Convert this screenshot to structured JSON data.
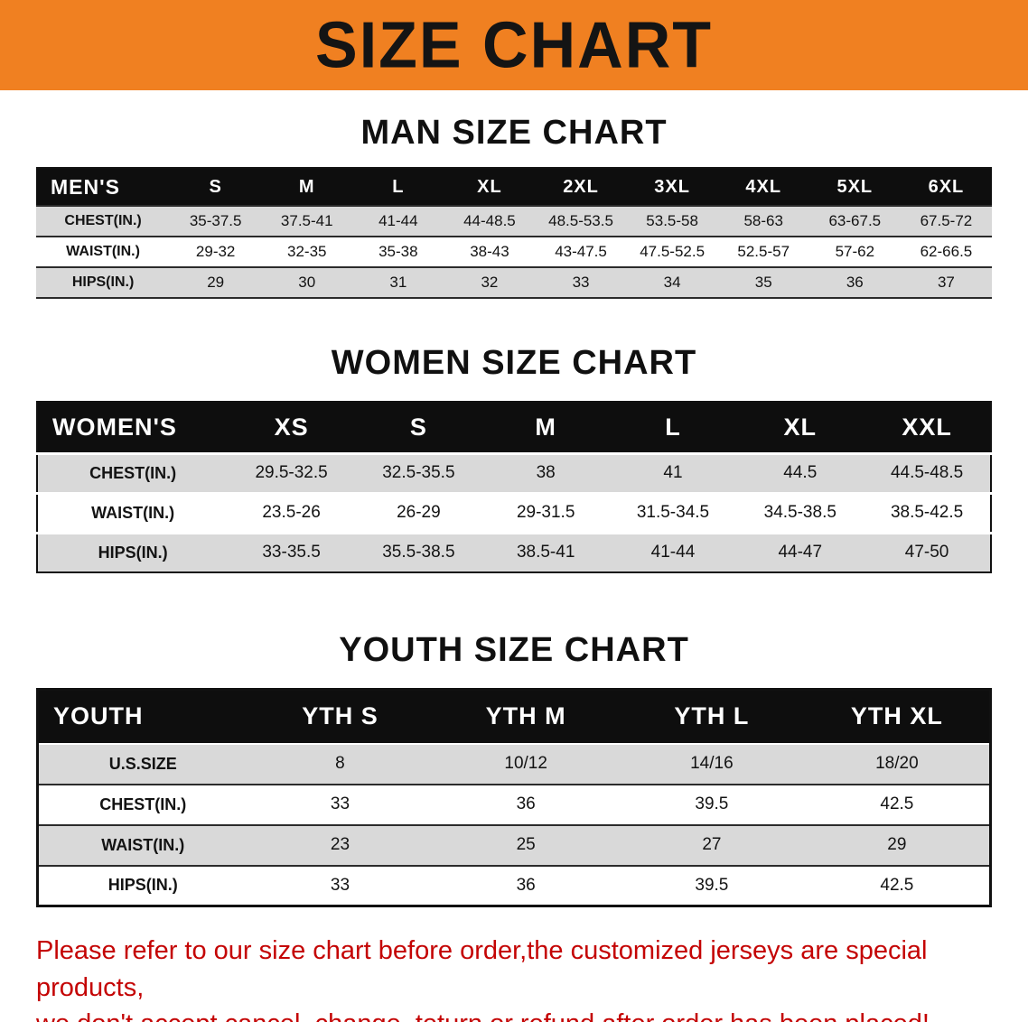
{
  "banner": {
    "title": "SIZE CHART",
    "bg_color": "#f08021",
    "text_color": "#141414"
  },
  "sections": [
    {
      "id": "men",
      "heading": "MAN SIZE CHART",
      "table": {
        "label_header": "MEN'S",
        "columns": [
          "S",
          "M",
          "L",
          "XL",
          "2XL",
          "3XL",
          "4XL",
          "5XL",
          "6XL"
        ],
        "rows": [
          {
            "label": "CHEST(IN.)",
            "values": [
              "35-37.5",
              "37.5-41",
              "41-44",
              "44-48.5",
              "48.5-53.5",
              "53.5-58",
              "58-63",
              "63-67.5",
              "67.5-72"
            ]
          },
          {
            "label": "WAIST(IN.)",
            "values": [
              "29-32",
              "32-35",
              "35-38",
              "38-43",
              "43-47.5",
              "47.5-52.5",
              "52.5-57",
              "57-62",
              "62-66.5"
            ]
          },
          {
            "label": "HIPS(IN.)",
            "values": [
              "29",
              "30",
              "31",
              "32",
              "33",
              "34",
              "35",
              "36",
              "37"
            ]
          }
        ]
      }
    },
    {
      "id": "women",
      "heading": "WOMEN SIZE CHART",
      "table": {
        "label_header": "WOMEN'S",
        "columns": [
          "XS",
          "S",
          "M",
          "L",
          "XL",
          "XXL"
        ],
        "rows": [
          {
            "label": "CHEST(IN.)",
            "values": [
              "29.5-32.5",
              "32.5-35.5",
              "38",
              "41",
              "44.5",
              "44.5-48.5"
            ]
          },
          {
            "label": "WAIST(IN.)",
            "values": [
              "23.5-26",
              "26-29",
              "29-31.5",
              "31.5-34.5",
              "34.5-38.5",
              "38.5-42.5"
            ]
          },
          {
            "label": "HIPS(IN.)",
            "values": [
              "33-35.5",
              "35.5-38.5",
              "38.5-41",
              "41-44",
              "44-47",
              "47-50"
            ]
          }
        ]
      }
    },
    {
      "id": "youth",
      "heading": "YOUTH SIZE CHART",
      "table": {
        "label_header": "YOUTH",
        "columns": [
          "YTH S",
          "YTH M",
          "YTH L",
          "YTH XL"
        ],
        "rows": [
          {
            "label": "U.S.SIZE",
            "values": [
              "8",
              "10/12",
              "14/16",
              "18/20"
            ]
          },
          {
            "label": "CHEST(IN.)",
            "values": [
              "33",
              "36",
              "39.5",
              "42.5"
            ]
          },
          {
            "label": "WAIST(IN.)",
            "values": [
              "23",
              "25",
              "27",
              "29"
            ]
          },
          {
            "label": "HIPS(IN.)",
            "values": [
              "33",
              "36",
              "39.5",
              "42.5"
            ]
          }
        ]
      }
    }
  ],
  "footer": {
    "line1": "Please refer to our size chart before order,the customized jerseys are special products,",
    "line2": "we don't accept cancel, change, teturn or refund after order has been placed!",
    "text_color": "#c40404"
  },
  "colors": {
    "row_shade": "#d9d9d9",
    "table_header_bg": "#0e0e0e"
  }
}
